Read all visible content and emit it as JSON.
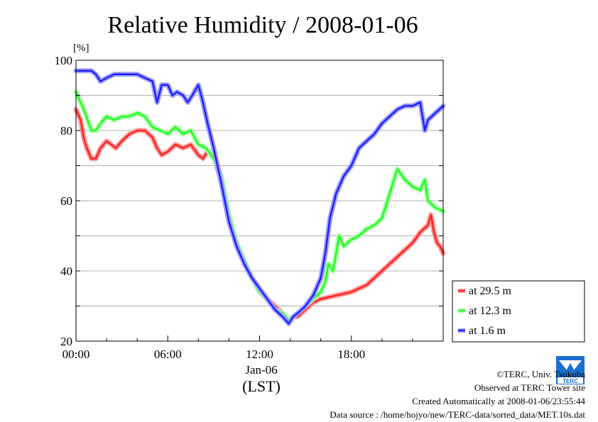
{
  "chart_data": {
    "type": "line",
    "title": "Relative Humidity / 2008-01-06",
    "ylabel": "[%]",
    "xlabel": "(LST)",
    "date_label": "Jan-06",
    "xlim": [
      0,
      24
    ],
    "ylim": [
      20,
      100
    ],
    "y_ticks": [
      20,
      40,
      60,
      80,
      100
    ],
    "x_ticks": [
      {
        "value": 0,
        "label": "00:00"
      },
      {
        "value": 6,
        "label": "06:00"
      },
      {
        "value": 12,
        "label": "12:00"
      },
      {
        "value": 18,
        "label": "18:00"
      }
    ],
    "grid": "horizontal",
    "legend_position": "right",
    "series": [
      {
        "name": "at 29.5 m",
        "color": "#ff2020",
        "points": [
          [
            0,
            86
          ],
          [
            0.3,
            83
          ],
          [
            0.5,
            78
          ],
          [
            0.7,
            75
          ],
          [
            1,
            72
          ],
          [
            1.3,
            72
          ],
          [
            1.6,
            75
          ],
          [
            2,
            77
          ],
          [
            2.3,
            76
          ],
          [
            2.6,
            75
          ],
          [
            3,
            77
          ],
          [
            3.5,
            79
          ],
          [
            4,
            80
          ],
          [
            4.5,
            80
          ],
          [
            5,
            78
          ],
          [
            5.3,
            75
          ],
          [
            5.6,
            73
          ],
          [
            6,
            74
          ],
          [
            6.5,
            76
          ],
          [
            7,
            75
          ],
          [
            7.5,
            76
          ],
          [
            8,
            73
          ],
          [
            8.3,
            72
          ],
          [
            8.6,
            74
          ],
          [
            9,
            72
          ],
          [
            9.5,
            66
          ],
          [
            10,
            55
          ],
          [
            10.5,
            48
          ],
          [
            11,
            43
          ],
          [
            11.5,
            38
          ],
          [
            12,
            35
          ],
          [
            12.5,
            32
          ],
          [
            13,
            30
          ],
          [
            13.5,
            28
          ],
          [
            13.9,
            25
          ],
          [
            14.2,
            27
          ],
          [
            14.5,
            27
          ],
          [
            15,
            29
          ],
          [
            15.5,
            31
          ],
          [
            16,
            32
          ],
          [
            17,
            33
          ],
          [
            18,
            34
          ],
          [
            19,
            36
          ],
          [
            20,
            40
          ],
          [
            21,
            44
          ],
          [
            22,
            48
          ],
          [
            22.5,
            51
          ],
          [
            23,
            53
          ],
          [
            23.2,
            56
          ],
          [
            23.4,
            51
          ],
          [
            23.6,
            48
          ],
          [
            23.8,
            47
          ],
          [
            24,
            45
          ]
        ]
      },
      {
        "name": "at 12.3 m",
        "color": "#20ff20",
        "points": [
          [
            0,
            91
          ],
          [
            0.3,
            88
          ],
          [
            0.6,
            85
          ],
          [
            1,
            80
          ],
          [
            1.3,
            80
          ],
          [
            1.6,
            82
          ],
          [
            2,
            84
          ],
          [
            2.5,
            83
          ],
          [
            3,
            84
          ],
          [
            3.5,
            84
          ],
          [
            4,
            85
          ],
          [
            4.5,
            84
          ],
          [
            5,
            81
          ],
          [
            5.5,
            80
          ],
          [
            6,
            79
          ],
          [
            6.5,
            81
          ],
          [
            7,
            79
          ],
          [
            7.5,
            80
          ],
          [
            8,
            76
          ],
          [
            8.5,
            75
          ],
          [
            9,
            72
          ],
          [
            9.5,
            67
          ],
          [
            10,
            56
          ],
          [
            10.5,
            48
          ],
          [
            11,
            43
          ],
          [
            11.5,
            38
          ],
          [
            12,
            34
          ],
          [
            12.5,
            32
          ],
          [
            13,
            29
          ],
          [
            13.5,
            28
          ],
          [
            13.9,
            26
          ],
          [
            14.2,
            27
          ],
          [
            14.5,
            28
          ],
          [
            15,
            30
          ],
          [
            15.5,
            32
          ],
          [
            16,
            34
          ],
          [
            16.3,
            37
          ],
          [
            16.5,
            42
          ],
          [
            16.8,
            40
          ],
          [
            17,
            45
          ],
          [
            17.2,
            50
          ],
          [
            17.5,
            47
          ],
          [
            18,
            49
          ],
          [
            18.5,
            50
          ],
          [
            19,
            52
          ],
          [
            19.5,
            53
          ],
          [
            20,
            55
          ],
          [
            20.5,
            62
          ],
          [
            21,
            69
          ],
          [
            21.5,
            66
          ],
          [
            22,
            64
          ],
          [
            22.5,
            63
          ],
          [
            22.8,
            66
          ],
          [
            23,
            60
          ],
          [
            23.5,
            58
          ],
          [
            24,
            57
          ]
        ]
      },
      {
        "name": "at 1.6 m",
        "color": "#2020ff",
        "points": [
          [
            0,
            97
          ],
          [
            0.5,
            97
          ],
          [
            1,
            97
          ],
          [
            1.3,
            96
          ],
          [
            1.6,
            94
          ],
          [
            2,
            95
          ],
          [
            2.5,
            96
          ],
          [
            3,
            96
          ],
          [
            3.5,
            96
          ],
          [
            4,
            96
          ],
          [
            4.5,
            95
          ],
          [
            5,
            94
          ],
          [
            5.3,
            88
          ],
          [
            5.6,
            93
          ],
          [
            6,
            93
          ],
          [
            6.3,
            90
          ],
          [
            6.6,
            91
          ],
          [
            7,
            90
          ],
          [
            7.3,
            88
          ],
          [
            7.6,
            90
          ],
          [
            8,
            93
          ],
          [
            8.3,
            88
          ],
          [
            8.6,
            82
          ],
          [
            9,
            75
          ],
          [
            9.5,
            65
          ],
          [
            10,
            54
          ],
          [
            10.5,
            47
          ],
          [
            11,
            42
          ],
          [
            11.5,
            38
          ],
          [
            12,
            35
          ],
          [
            12.5,
            32
          ],
          [
            13,
            29
          ],
          [
            13.5,
            27
          ],
          [
            13.9,
            25
          ],
          [
            14.2,
            27
          ],
          [
            14.5,
            28
          ],
          [
            15,
            30
          ],
          [
            15.5,
            33
          ],
          [
            16,
            38
          ],
          [
            16.3,
            45
          ],
          [
            16.6,
            55
          ],
          [
            17,
            62
          ],
          [
            17.5,
            67
          ],
          [
            18,
            70
          ],
          [
            18.5,
            75
          ],
          [
            19,
            77
          ],
          [
            19.5,
            79
          ],
          [
            20,
            82
          ],
          [
            20.5,
            84
          ],
          [
            21,
            86
          ],
          [
            21.5,
            87
          ],
          [
            22,
            87
          ],
          [
            22.5,
            88
          ],
          [
            22.8,
            80
          ],
          [
            23,
            83
          ],
          [
            23.5,
            85
          ],
          [
            24,
            87
          ]
        ]
      }
    ]
  },
  "credits": {
    "copyright": "©TERC, Univ. Tsukuba",
    "observed": "Observed at TERC Tower site",
    "created": "Created Automatically at 2008-01-06/23:55:44",
    "source": "Data source : /home/hojyo/new/TERC-data/sorted_data/MET.10s.dat",
    "logo_text": "TERC"
  }
}
